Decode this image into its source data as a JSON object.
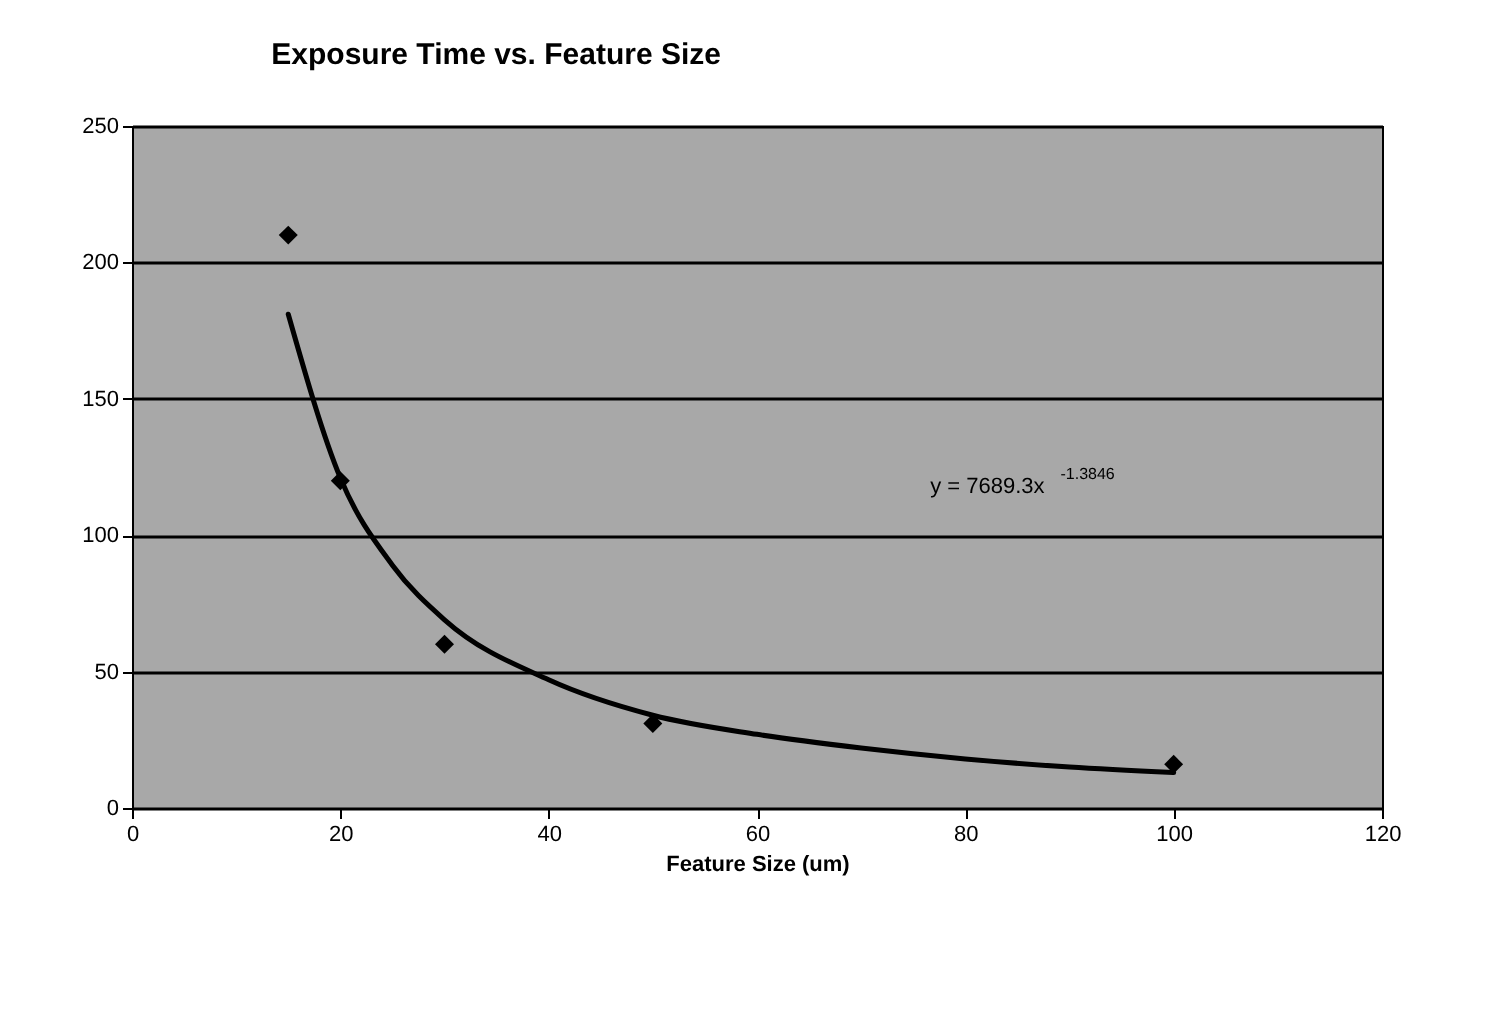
{
  "chart_data": {
    "type": "scatter",
    "title": "Exposure Time vs. Feature Size",
    "xlabel": "Feature Size (um)",
    "xlim": [
      0,
      120
    ],
    "xticks": [
      0,
      20,
      40,
      60,
      80,
      100,
      120
    ],
    "ylim": [
      0,
      250
    ],
    "yticks": [
      0,
      50,
      100,
      150,
      200,
      250
    ],
    "grid": "y",
    "annotations": [
      "y = 7689.3x$^{-1.3846}$"
    ],
    "series": [
      {
        "color": "#000000",
        "marker": "diamond",
        "x": [
          15,
          20,
          30,
          50,
          100
        ],
        "values": [
          210,
          120,
          60,
          31,
          16
        ]
      },
      {
        "type": "line",
        "color": "#000000",
        "x": [
          15,
          20,
          25,
          30,
          40,
          50,
          60,
          70,
          80,
          90,
          100
        ],
        "values": [
          181,
          121,
          89,
          69,
          47,
          34,
          27,
          22,
          18,
          15,
          13
        ]
      }
    ]
  }
}
